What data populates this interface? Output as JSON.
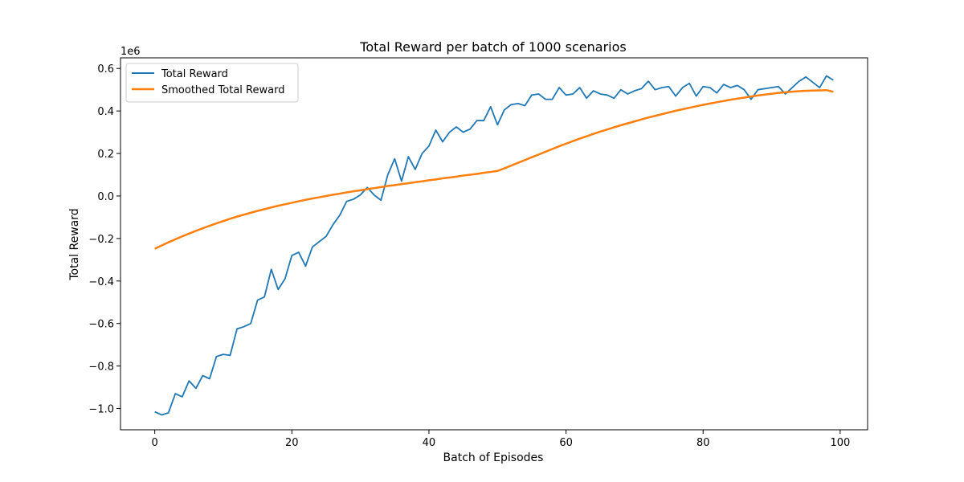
{
  "chart_data": {
    "type": "line",
    "title": "Total Reward per batch of 1000 scenarios",
    "xlabel": "Batch of Episodes",
    "ylabel": "Total Reward",
    "y_scale_label": "1e6",
    "xlim": [
      -5,
      104
    ],
    "ylim": [
      -1.1,
      0.65
    ],
    "x_ticks": [
      0,
      20,
      40,
      60,
      80,
      100
    ],
    "x_tick_labels": [
      "0",
      "20",
      "40",
      "60",
      "80",
      "100"
    ],
    "y_ticks": [
      -1.0,
      -0.8,
      -0.6,
      -0.4,
      -0.2,
      0.0,
      0.2,
      0.4,
      0.6
    ],
    "y_tick_labels": [
      "−1.0",
      "−0.8",
      "−0.6",
      "−0.4",
      "−0.2",
      "0.0",
      "0.2",
      "0.4",
      "0.6"
    ],
    "grid": false,
    "legend_position": "top-left",
    "series": [
      {
        "name": "Total Reward",
        "color": "#1f77b4",
        "values": [
          -1.015,
          -1.03,
          -1.02,
          -0.93,
          -0.945,
          -0.87,
          -0.905,
          -0.845,
          -0.86,
          -0.755,
          -0.745,
          -0.75,
          -0.625,
          -0.615,
          -0.6,
          -0.49,
          -0.475,
          -0.345,
          -0.44,
          -0.39,
          -0.28,
          -0.265,
          -0.33,
          -0.24,
          -0.215,
          -0.19,
          -0.135,
          -0.09,
          -0.025,
          -0.015,
          0.005,
          0.04,
          0.005,
          -0.02,
          0.1,
          0.175,
          0.07,
          0.185,
          0.125,
          0.2,
          0.235,
          0.31,
          0.255,
          0.3,
          0.325,
          0.3,
          0.315,
          0.355,
          0.355,
          0.42,
          0.335,
          0.405,
          0.43,
          0.435,
          0.425,
          0.475,
          0.48,
          0.455,
          0.455,
          0.51,
          0.475,
          0.48,
          0.51,
          0.46,
          0.495,
          0.48,
          0.475,
          0.46,
          0.5,
          0.48,
          0.495,
          0.505,
          0.54,
          0.5,
          0.51,
          0.515,
          0.47,
          0.51,
          0.53,
          0.47,
          0.515,
          0.51,
          0.485,
          0.525,
          0.51,
          0.52,
          0.5,
          0.455,
          0.5,
          0.505,
          0.51,
          0.515,
          0.48,
          0.51,
          0.54,
          0.56,
          0.535,
          0.51,
          0.565,
          0.545
        ]
      },
      {
        "name": "Smoothed Total Reward",
        "color": "#ff7f0e",
        "values": [
          -0.248,
          -0.233,
          -0.218,
          -0.204,
          -0.19,
          -0.177,
          -0.164,
          -0.152,
          -0.14,
          -0.129,
          -0.118,
          -0.107,
          -0.097,
          -0.088,
          -0.079,
          -0.07,
          -0.062,
          -0.054,
          -0.046,
          -0.039,
          -0.032,
          -0.025,
          -0.018,
          -0.012,
          -0.006,
          0.0,
          0.006,
          0.011,
          0.017,
          0.022,
          0.027,
          0.032,
          0.037,
          0.042,
          0.047,
          0.051,
          0.056,
          0.06,
          0.065,
          0.069,
          0.074,
          0.078,
          0.083,
          0.087,
          0.091,
          0.096,
          0.1,
          0.104,
          0.109,
          0.113,
          0.118,
          0.13,
          0.143,
          0.156,
          0.169,
          0.182,
          0.195,
          0.208,
          0.221,
          0.234,
          0.246,
          0.258,
          0.27,
          0.281,
          0.292,
          0.303,
          0.313,
          0.323,
          0.333,
          0.342,
          0.351,
          0.36,
          0.369,
          0.377,
          0.385,
          0.393,
          0.401,
          0.408,
          0.415,
          0.422,
          0.429,
          0.435,
          0.441,
          0.447,
          0.453,
          0.458,
          0.463,
          0.468,
          0.473,
          0.477,
          0.481,
          0.485,
          0.488,
          0.491,
          0.493,
          0.495,
          0.496,
          0.497,
          0.498,
          0.49
        ]
      }
    ]
  }
}
